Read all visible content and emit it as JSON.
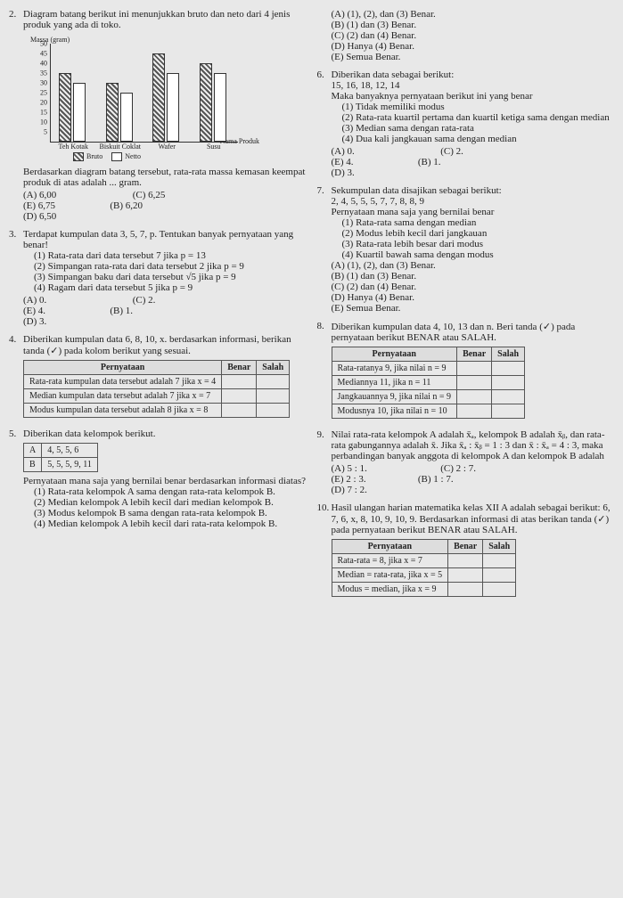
{
  "left": {
    "q2": {
      "num": "2.",
      "text": "Diagram batang berikut ini menunjukkan bruto dan neto dari 4 jenis produk yang ada di toko.",
      "ylabel": "Massa (gram)",
      "xlabel": "Nama Produk",
      "yticks": [
        "5",
        "10",
        "15",
        "20",
        "25",
        "30",
        "35",
        "40",
        "45",
        "50"
      ],
      "ymax": 50,
      "products": [
        {
          "name": "Teh Kotak",
          "bruto": 35,
          "netto": 30
        },
        {
          "name": "Biskuit Coklat",
          "bruto": 30,
          "netto": 25
        },
        {
          "name": "Wafer",
          "bruto": 45,
          "netto": 35
        },
        {
          "name": "Susu",
          "bruto": 40,
          "netto": 35
        }
      ],
      "legend_bruto": "Bruto",
      "legend_netto": "Netto",
      "after": "Berdasarkan diagram batang tersebut, rata-rata massa kemasan keempat produk di atas adalah ... gram.",
      "opts": [
        "(A) 6,00",
        "(B) 6,20",
        "(C) 6,25",
        "(D) 6,50",
        "(E) 6,75"
      ]
    },
    "q3": {
      "num": "3.",
      "text": "Terdapat kumpulan data 3, 5, 7, p. Tentukan banyak pernyataan yang benar!",
      "subs": [
        "(1) Rata-rata dari data tersebut 7 jika p = 13",
        "(2) Simpangan rata-rata dari data tersebut 2 jika p = 9",
        "(3) Simpangan baku dari data tersebut √5 jika p = 9",
        "(4) Ragam dari data tersebut 5 jika p = 9"
      ],
      "opts": [
        "(A) 0.",
        "(B) 1.",
        "(C) 2.",
        "(D) 3.",
        "(E) 4."
      ]
    },
    "q4": {
      "num": "4.",
      "text": "Diberikan kumpulan data 6, 8, 10, x. berdasarkan informasi, berikan tanda (✓) pada kolom berikut yang sesuai.",
      "th": [
        "Pernyataan",
        "Benar",
        "Salah"
      ],
      "rows": [
        "Rata-rata kumpulan data tersebut adalah 7 jika x = 4",
        "Median kumpulan data tersebut adalah 7 jika x = 7",
        "Modus kumpulan data tersebut adalah 8 jika x = 8"
      ]
    },
    "q5": {
      "num": "5.",
      "text": "Diberikan data kelompok berikut.",
      "tA": "A",
      "tAv": "4, 5, 5, 6",
      "tB": "B",
      "tBv": "5, 5, 5, 9, 11",
      "after": "Pernyataan mana saja yang bernilai benar berdasarkan informasi diatas?",
      "subs": [
        "(1) Rata-rata kelompok A sama dengan rata-rata kelompok B.",
        "(2) Median kelompok A lebih kecil dari median kelompok B.",
        "(3) Modus kelompok B sama dengan rata-rata kelompok B.",
        "(4) Median kelompok A lebih kecil dari rata-rata kelompok B."
      ]
    }
  },
  "right": {
    "q5opts": [
      "(A) (1), (2), dan (3) Benar.",
      "(B) (1) dan (3) Benar.",
      "(C) (2) dan (4) Benar.",
      "(D) Hanya (4) Benar.",
      "(E) Semua Benar."
    ],
    "q6": {
      "num": "6.",
      "text": "Diberikan data sebagai berikut:",
      "data": "15, 16, 18, 12, 14",
      "after": "Maka banyaknya pernyataan berikut ini yang benar",
      "subs": [
        "(1) Tidak memiliki modus",
        "(2) Rata-rata kuartil pertama dan kuartil ketiga sama dengan median",
        "(3) Median sama dengan rata-rata",
        "(4) Dua kali jangkauan sama dengan median"
      ],
      "opts": [
        "(A) 0.",
        "(B) 1.",
        "(C) 2.",
        "(D) 3.",
        "(E) 4."
      ]
    },
    "q7": {
      "num": "7.",
      "text": "Sekumpulan data disajikan sebagai berikut:",
      "data": "2, 4, 5, 5, 5, 7, 7, 8, 8, 9",
      "after": "Pernyataan mana saja yang bernilai benar",
      "subs": [
        "(1) Rata-rata sama dengan median",
        "(2) Modus lebih kecil dari jangkauan",
        "(3) Rata-rata lebih besar dari modus",
        "(4) Kuartil bawah sama dengan modus"
      ],
      "opts": [
        "(A) (1), (2), dan (3) Benar.",
        "(B) (1) dan (3) Benar.",
        "(C) (2) dan (4) Benar.",
        "(D) Hanya (4) Benar.",
        "(E) Semua Benar."
      ]
    },
    "q8": {
      "num": "8.",
      "text": "Diberikan kumpulan data 4, 10, 13 dan n. Beri tanda (✓) pada pernyataan berikut BENAR atau SALAH.",
      "th": [
        "Pernyataan",
        "Benar",
        "Salah"
      ],
      "rows": [
        "Rata-ratanya 9, jika nilai n = 9",
        "Mediannya 11, jika n = 11",
        "Jangkauannya 9, jika nilai n = 9",
        "Modusnya 10, jika nilai n = 10"
      ]
    },
    "q9": {
      "num": "9.",
      "text": "Nilai rata-rata kelompok A adalah x̄ₐ, kelompok B adalah x̄ᵦ, dan rata-rata gabungannya adalah x̄. Jika x̄ₐ : x̄ᵦ = 1 : 3 dan x̄ : x̄ₐ = 4 : 3, maka perbandingan banyak anggota di kelompok A dan kelompok B adalah",
      "opts": [
        "(A) 5 : 1.",
        "(B) 1 : 7.",
        "(C) 2 : 7.",
        "(D) 7 : 2.",
        "(E) 2 : 3."
      ]
    },
    "q10": {
      "num": "10.",
      "text": "Hasil ulangan harian matematika kelas XII A adalah sebagai berikut: 6, 7, 6, x, 8, 10, 9, 10, 9. Berdasarkan informasi di atas berikan tanda (✓) pada pernyataan berikut BENAR atau SALAH.",
      "th": [
        "Pernyataan",
        "Benar",
        "Salah"
      ],
      "rows": [
        "Rata-rata = 8, jika x = 7",
        "Median = rata-rata, jika x = 5",
        "Modus = median, jika x = 9"
      ]
    }
  }
}
